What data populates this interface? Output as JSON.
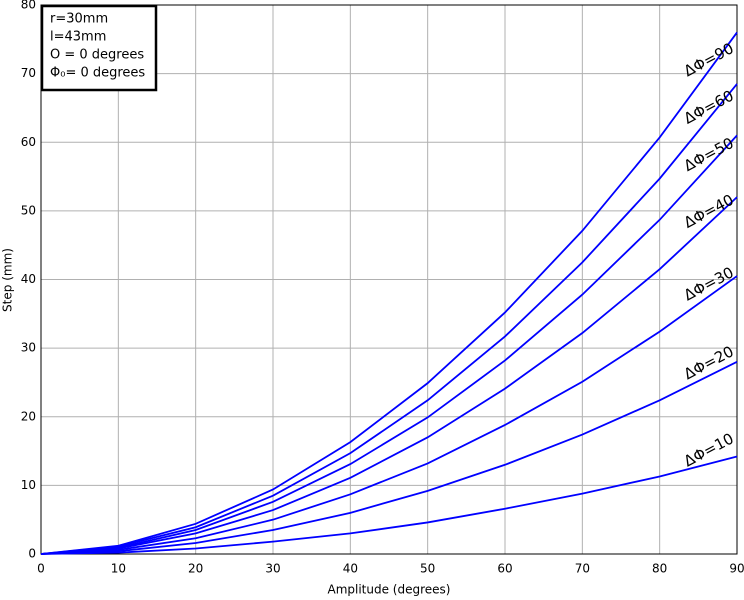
{
  "chart_data": {
    "type": "line",
    "x_label": "Amplitude (degrees)",
    "y_label": "Step (mm)",
    "info": [
      "r=30mm",
      "l=43mm",
      "O = 0 degrees",
      "Φ₀= 0 degrees"
    ],
    "x": [
      0,
      10,
      20,
      30,
      40,
      50,
      60,
      70,
      80,
      90
    ],
    "xlim": [
      0,
      90
    ],
    "xticks": [
      0,
      10,
      20,
      30,
      40,
      50,
      60,
      70,
      80,
      90
    ],
    "ylim": [
      0,
      80
    ],
    "yticks": [
      0,
      10,
      20,
      30,
      40,
      50,
      60,
      70,
      80
    ],
    "grid": true,
    "series": [
      {
        "name": "ΔΦ=10",
        "color": "#0000ff",
        "values": [
          0,
          0.2,
          0.8,
          1.8,
          3.0,
          4.6,
          6.6,
          8.8,
          11.3,
          14.2
        ]
      },
      {
        "name": "ΔΦ=20",
        "color": "#0000ff",
        "values": [
          0,
          0.4,
          1.6,
          3.5,
          6.0,
          9.2,
          13.0,
          17.4,
          22.4,
          28
        ]
      },
      {
        "name": "ΔΦ=30",
        "color": "#0000ff",
        "values": [
          0,
          0.6,
          2.3,
          5.0,
          8.7,
          13.2,
          18.8,
          25.1,
          32.4,
          40.5
        ]
      },
      {
        "name": "ΔΦ=40",
        "color": "#0000ff",
        "values": [
          0,
          0.8,
          3.0,
          6.4,
          11.1,
          17.0,
          24.1,
          32.2,
          41.5,
          52
        ]
      },
      {
        "name": "ΔΦ=50",
        "color": "#0000ff",
        "values": [
          0,
          0.9,
          3.5,
          7.6,
          13.1,
          19.9,
          28.2,
          37.8,
          48.7,
          61
        ]
      },
      {
        "name": "ΔΦ=60",
        "color": "#0000ff",
        "values": [
          0,
          1.1,
          3.9,
          8.5,
          14.7,
          22.4,
          31.7,
          42.5,
          54.7,
          68.5
        ]
      },
      {
        "name": "ΔΦ=90",
        "color": "#0000ff",
        "values": [
          0,
          1.2,
          4.4,
          9.4,
          16.3,
          24.9,
          35.2,
          47.1,
          60.7,
          76
        ]
      }
    ]
  }
}
